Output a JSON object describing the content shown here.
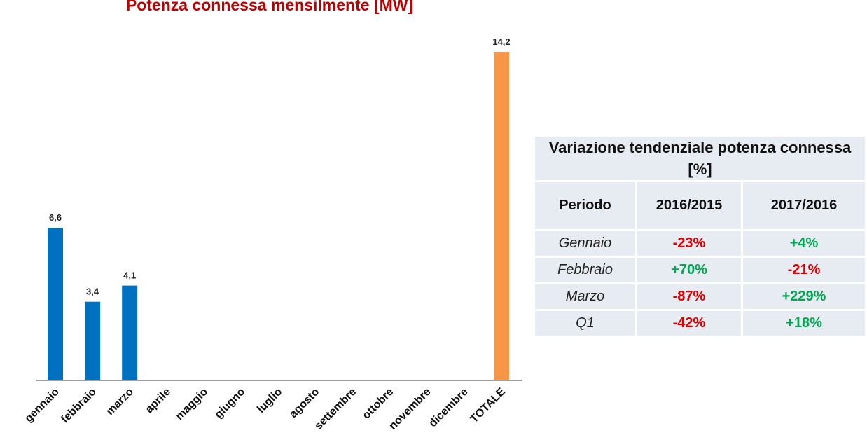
{
  "chart_data": {
    "type": "bar",
    "title": "Potenza connessa mensilmente [MW]",
    "categories": [
      "gennaio",
      "febbraio",
      "marzo",
      "aprile",
      "maggio",
      "giugno",
      "luglio",
      "agosto",
      "settembre",
      "ottobre",
      "novembre",
      "dicembre",
      "TOTALE"
    ],
    "values": [
      6.6,
      3.4,
      4.1,
      null,
      null,
      null,
      null,
      null,
      null,
      null,
      null,
      null,
      14.2
    ],
    "data_labels": [
      "6,6",
      "3,4",
      "4,1",
      "",
      "",
      "",
      "",
      "",
      "",
      "",
      "",
      "",
      "14,2"
    ],
    "bar_colors": [
      "#0070c0",
      "#0070c0",
      "#0070c0",
      "#0070c0",
      "#0070c0",
      "#0070c0",
      "#0070c0",
      "#0070c0",
      "#0070c0",
      "#0070c0",
      "#0070c0",
      "#0070c0",
      "#f79646"
    ],
    "ylim": [
      0,
      14.2
    ],
    "grid": false,
    "xlabel": "",
    "ylabel": ""
  },
  "table": {
    "title": "Variazione tendenziale potenza connessa [%]",
    "headers": [
      "Periodo",
      "2016/2015",
      "2017/2016"
    ],
    "rows": [
      {
        "period": "Gennaio",
        "v1": "-23%",
        "v2": "+4%"
      },
      {
        "period": "Febbraio",
        "v1": "+70%",
        "v2": "-21%"
      },
      {
        "period": "Marzo",
        "v1": "-87%",
        "v2": "+229%"
      },
      {
        "period": "Q1",
        "v1": "-42%",
        "v2": "+18%"
      }
    ],
    "colors": {
      "negative": "#e00000",
      "positive": "#00a651"
    }
  }
}
